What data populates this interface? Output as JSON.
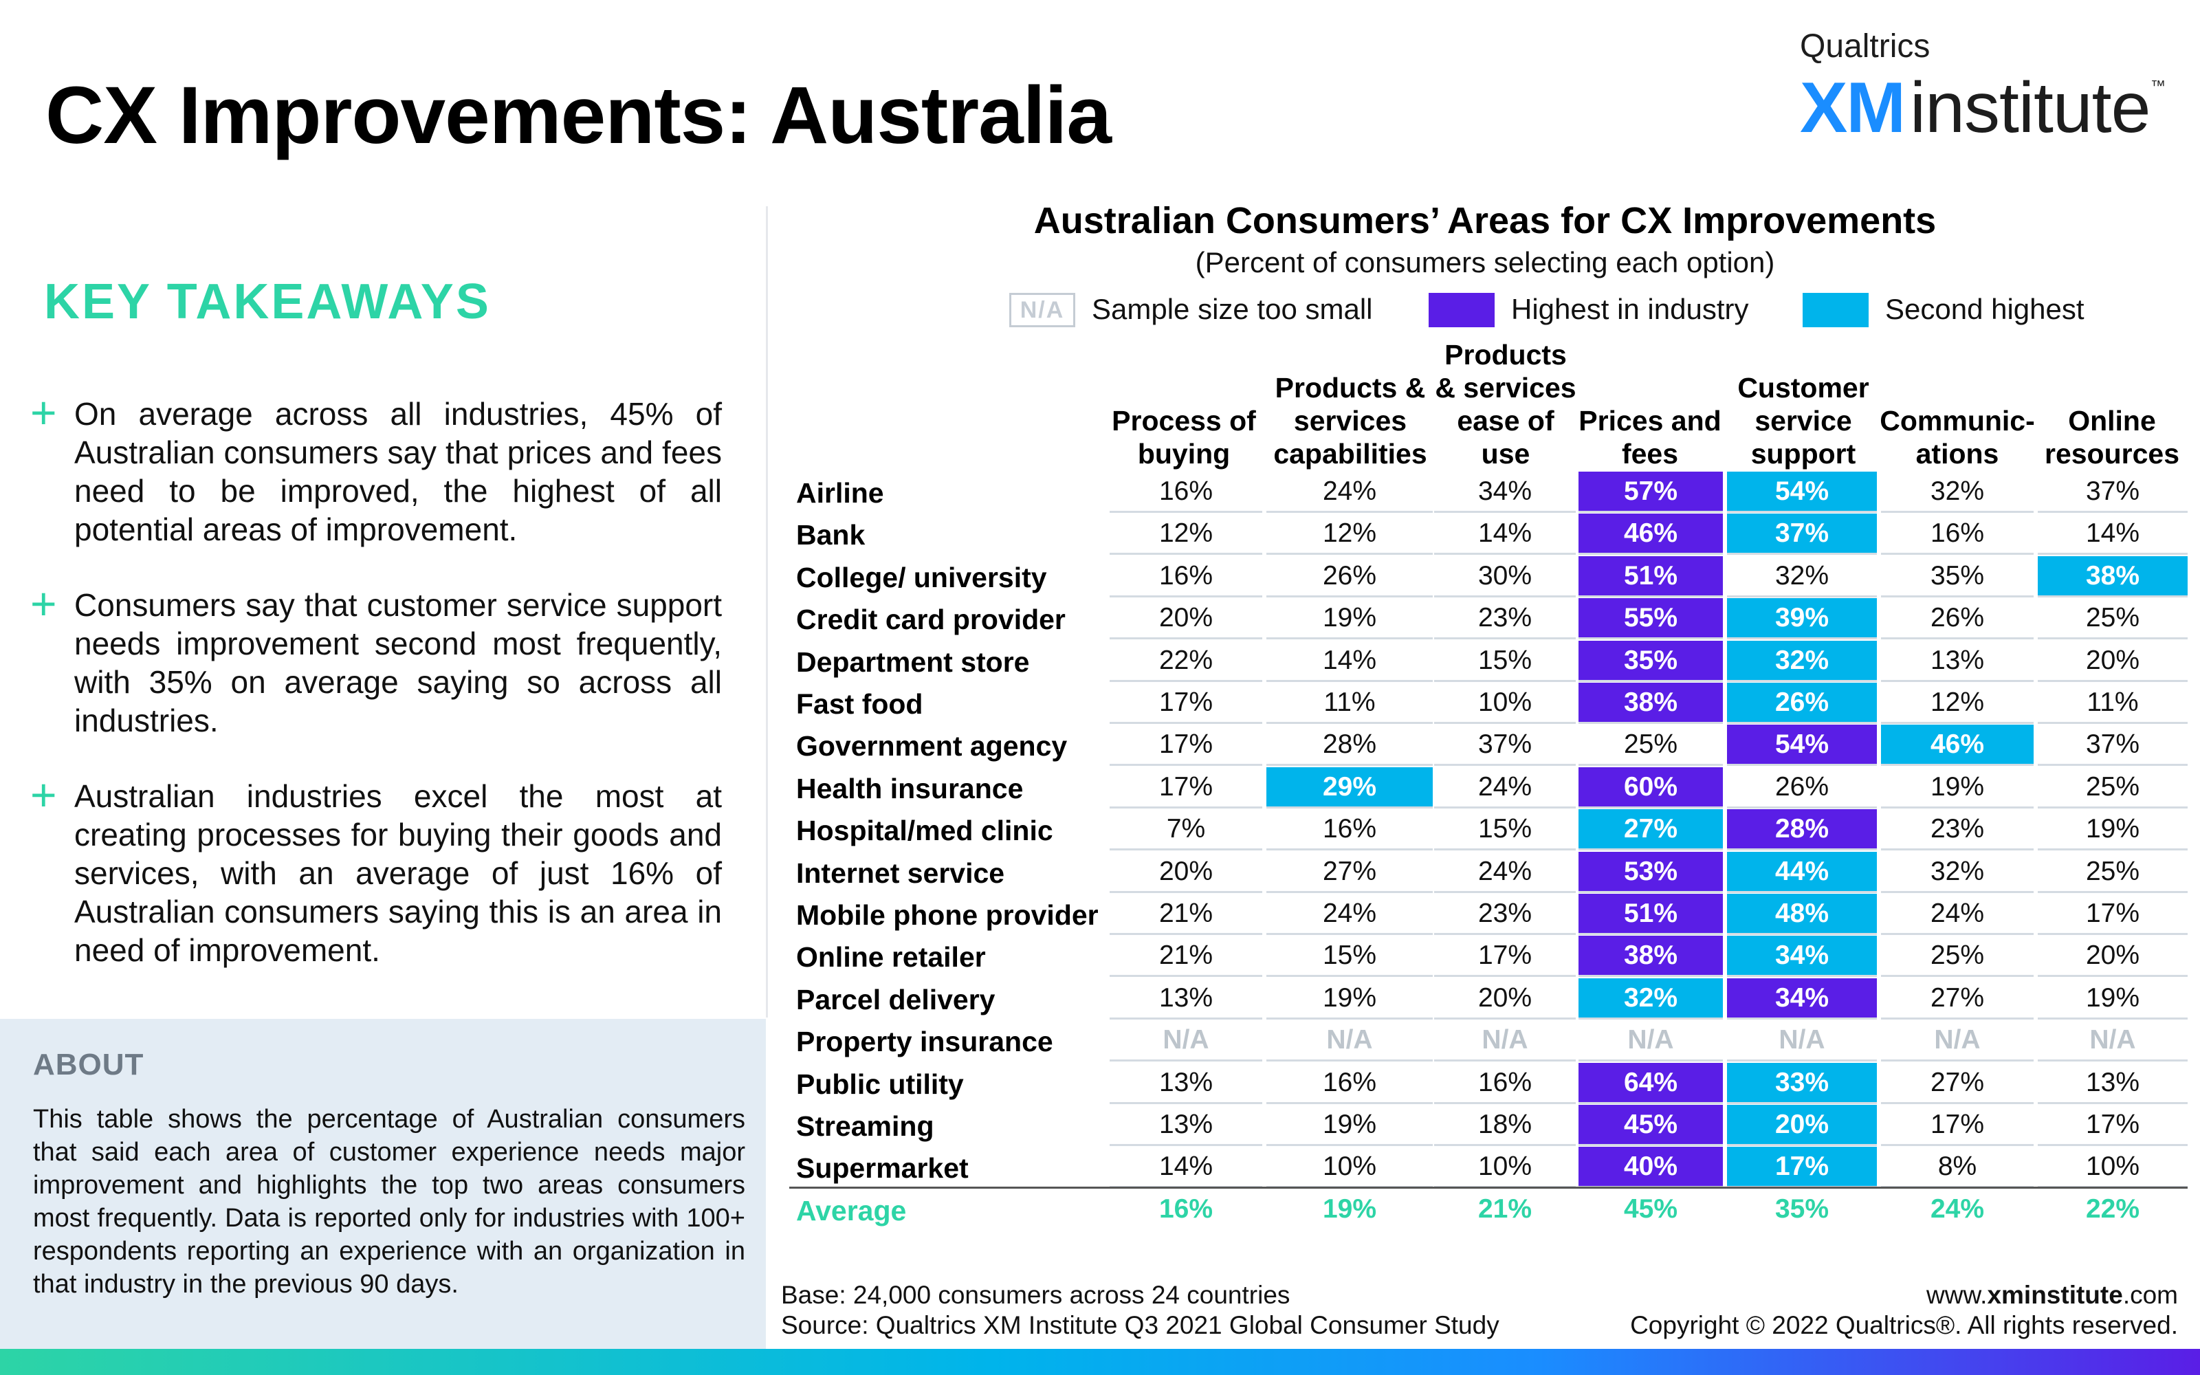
{
  "page": {
    "title": "CX Improvements: Australia"
  },
  "logo": {
    "top": "Qualtrics",
    "xm": "XM",
    "word": "institute",
    "tm": "™"
  },
  "takeaways": {
    "title": "KEY TAKEAWAYS",
    "items": [
      "On average across all industries, 45% of Australian consumers say that prices and fees need to be improved, the highest of all potential areas of improvement.",
      "Consumers say that customer service support needs improvement second most frequently, with 35% on average saying so across all industries.",
      "Australian industries excel the most at creating processes for buying their goods and services, with an average of just 16% of Australian consumers saying this is an area in need of improvement."
    ],
    "plus_glyph": "+"
  },
  "about": {
    "title": "ABOUT",
    "text": "This table shows the percentage of Australian consumers that said each area of customer experience needs major improvement and highlights the top two areas consumers most frequently. Data is reported only for industries with 100+ respondents reporting an experience with an organization in that industry in the previous 90 days."
  },
  "legend": {
    "na_box": "N/A",
    "na_label": "Sample size too small",
    "first_label": "Highest in industry",
    "second_label": "Second highest"
  },
  "colors": {
    "highest": "#5a1ee6",
    "second": "#00b4eb",
    "accent": "#2dd4a6",
    "na": "#bdc5cc"
  },
  "chart_data": {
    "type": "table",
    "title": "Australian Consumers’ Areas for CX Improvements",
    "subtitle": "(Percent of consumers selecting each option)",
    "columns": [
      "Process of\nbuying",
      "Products &\nservices\ncapabilities",
      "Products\n& services\nease of\nuse",
      "Prices and\nfees",
      "Customer\nservice\nsupport",
      "Communic-\nations",
      "Online\nresources"
    ],
    "rows": [
      {
        "label": "Airline",
        "values": [
          "16%",
          "24%",
          "34%",
          "57%",
          "54%",
          "32%",
          "37%"
        ],
        "highlight": [
          "",
          "",
          "",
          "first",
          "second",
          "",
          ""
        ]
      },
      {
        "label": "Bank",
        "values": [
          "12%",
          "12%",
          "14%",
          "46%",
          "37%",
          "16%",
          "14%"
        ],
        "highlight": [
          "",
          "",
          "",
          "first",
          "second",
          "",
          ""
        ]
      },
      {
        "label": "College/ university",
        "values": [
          "16%",
          "26%",
          "30%",
          "51%",
          "32%",
          "35%",
          "38%"
        ],
        "highlight": [
          "",
          "",
          "",
          "first",
          "",
          "",
          "second"
        ]
      },
      {
        "label": "Credit card provider",
        "values": [
          "20%",
          "19%",
          "23%",
          "55%",
          "39%",
          "26%",
          "25%"
        ],
        "highlight": [
          "",
          "",
          "",
          "first",
          "second",
          "",
          ""
        ]
      },
      {
        "label": "Department store",
        "values": [
          "22%",
          "14%",
          "15%",
          "35%",
          "32%",
          "13%",
          "20%"
        ],
        "highlight": [
          "",
          "",
          "",
          "first",
          "second",
          "",
          ""
        ]
      },
      {
        "label": "Fast food",
        "values": [
          "17%",
          "11%",
          "10%",
          "38%",
          "26%",
          "12%",
          "11%"
        ],
        "highlight": [
          "",
          "",
          "",
          "first",
          "second",
          "",
          ""
        ]
      },
      {
        "label": "Government agency",
        "values": [
          "17%",
          "28%",
          "37%",
          "25%",
          "54%",
          "46%",
          "37%"
        ],
        "highlight": [
          "",
          "",
          "",
          "",
          "first",
          "second",
          ""
        ]
      },
      {
        "label": "Health insurance",
        "values": [
          "17%",
          "29%",
          "24%",
          "60%",
          "26%",
          "19%",
          "25%"
        ],
        "highlight": [
          "",
          "second",
          "",
          "first",
          "",
          "",
          ""
        ]
      },
      {
        "label": "Hospital/med clinic",
        "values": [
          "7%",
          "16%",
          "15%",
          "27%",
          "28%",
          "23%",
          "19%"
        ],
        "highlight": [
          "",
          "",
          "",
          "second",
          "first",
          "",
          ""
        ]
      },
      {
        "label": "Internet service",
        "values": [
          "20%",
          "27%",
          "24%",
          "53%",
          "44%",
          "32%",
          "25%"
        ],
        "highlight": [
          "",
          "",
          "",
          "first",
          "second",
          "",
          ""
        ]
      },
      {
        "label": "Mobile phone provider",
        "values": [
          "21%",
          "24%",
          "23%",
          "51%",
          "48%",
          "24%",
          "17%"
        ],
        "highlight": [
          "",
          "",
          "",
          "first",
          "second",
          "",
          ""
        ]
      },
      {
        "label": "Online retailer",
        "values": [
          "21%",
          "15%",
          "17%",
          "38%",
          "34%",
          "25%",
          "20%"
        ],
        "highlight": [
          "",
          "",
          "",
          "first",
          "second",
          "",
          ""
        ]
      },
      {
        "label": "Parcel delivery",
        "values": [
          "13%",
          "19%",
          "20%",
          "32%",
          "34%",
          "27%",
          "19%"
        ],
        "highlight": [
          "",
          "",
          "",
          "second",
          "first",
          "",
          ""
        ]
      },
      {
        "label": "Property insurance",
        "values": [
          "N/A",
          "N/A",
          "N/A",
          "N/A",
          "N/A",
          "N/A",
          "N/A"
        ],
        "highlight": [
          "na",
          "na",
          "na",
          "na",
          "na",
          "na",
          "na"
        ]
      },
      {
        "label": "Public utility",
        "values": [
          "13%",
          "16%",
          "16%",
          "64%",
          "33%",
          "27%",
          "13%"
        ],
        "highlight": [
          "",
          "",
          "",
          "first",
          "second",
          "",
          ""
        ]
      },
      {
        "label": "Streaming",
        "values": [
          "13%",
          "19%",
          "18%",
          "45%",
          "20%",
          "17%",
          "17%"
        ],
        "highlight": [
          "",
          "",
          "",
          "first",
          "second",
          "",
          ""
        ]
      },
      {
        "label": "Supermarket",
        "values": [
          "14%",
          "10%",
          "10%",
          "40%",
          "17%",
          "8%",
          "10%"
        ],
        "highlight": [
          "",
          "",
          "",
          "first",
          "second",
          "",
          ""
        ]
      }
    ],
    "average": {
      "label": "Average",
      "values": [
        "16%",
        "19%",
        "21%",
        "45%",
        "35%",
        "24%",
        "22%"
      ]
    }
  },
  "footer": {
    "base": "Base: 24,000 consumers across 24 countries",
    "source": "Source: Qualtrics XM Institute Q3 2021 Global Consumer Study",
    "site_prefix": "www.",
    "site_bold": "xminstitute",
    "site_suffix": ".com",
    "copyright": "Copyright © 2022 Qualtrics®. All rights reserved."
  }
}
